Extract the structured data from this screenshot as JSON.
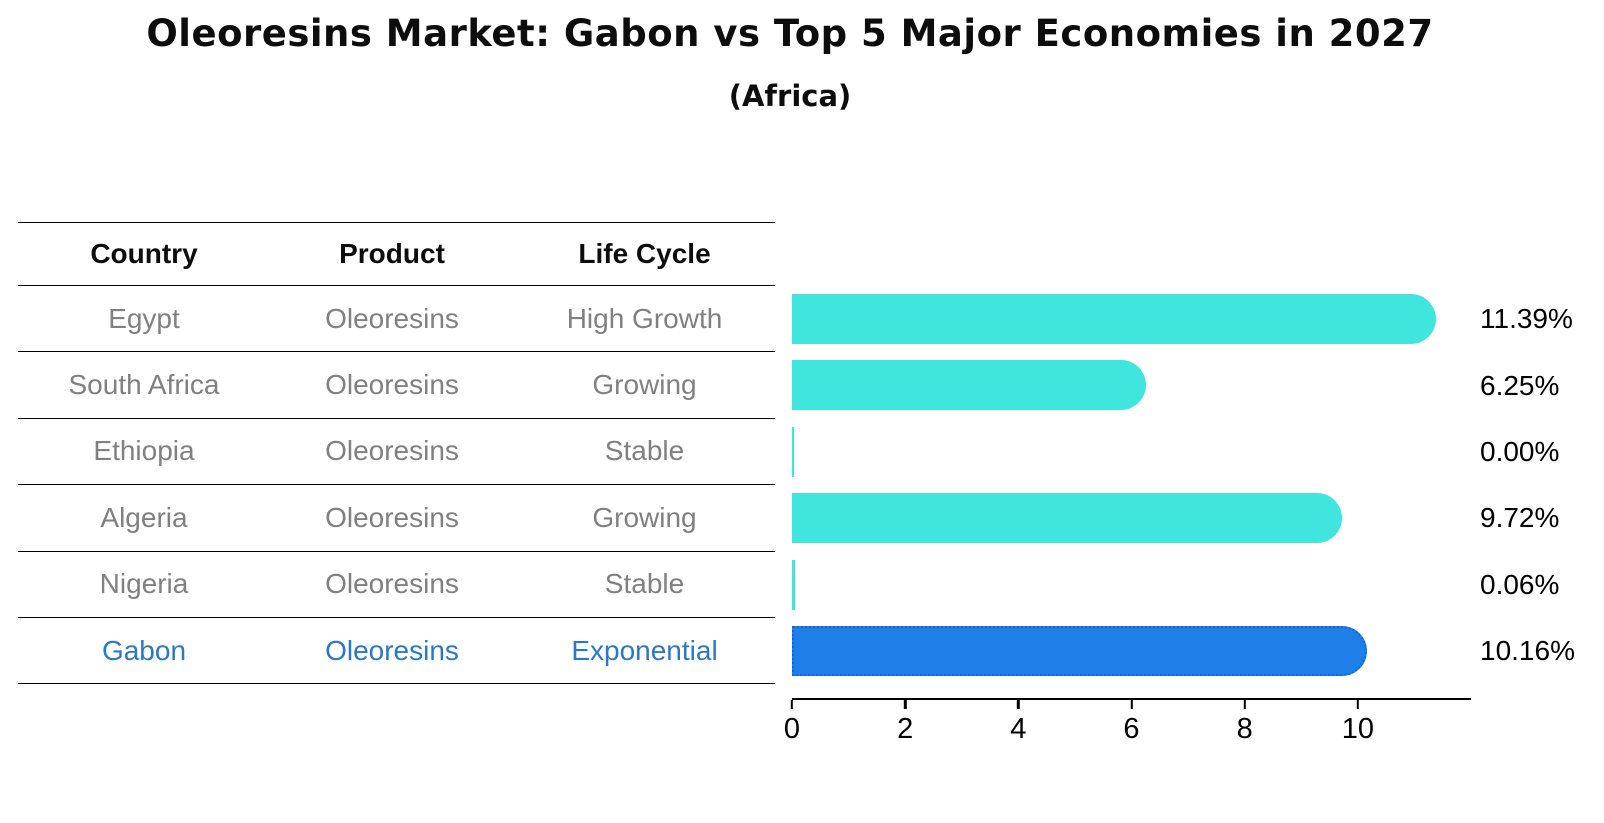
{
  "title": "Oleoresins Market: Gabon vs Top 5 Major Economies in 2027",
  "subtitle": "(Africa)",
  "table": {
    "headers": [
      "Country",
      "Product",
      "Life Cycle"
    ],
    "rows": [
      {
        "country": "Egypt",
        "product": "Oleoresins",
        "life_cycle": "High Growth",
        "highlight": false
      },
      {
        "country": "South Africa",
        "product": "Oleoresins",
        "life_cycle": "Growing",
        "highlight": false
      },
      {
        "country": "Ethiopia",
        "product": "Oleoresins",
        "life_cycle": "Stable",
        "highlight": false
      },
      {
        "country": "Algeria",
        "product": "Oleoresins",
        "life_cycle": "Growing",
        "highlight": false
      },
      {
        "country": "Nigeria",
        "product": "Oleoresins",
        "life_cycle": "Stable",
        "highlight": false
      },
      {
        "country": "Gabon",
        "product": "Oleoresins",
        "life_cycle": "Exponential",
        "highlight": true
      }
    ]
  },
  "chart_data": {
    "type": "bar",
    "orientation": "horizontal",
    "title": "Oleoresins Market: Gabon vs Top 5 Major Economies in 2027 (Africa)",
    "categories": [
      "Egypt",
      "South Africa",
      "Ethiopia",
      "Algeria",
      "Nigeria",
      "Gabon"
    ],
    "values": [
      11.39,
      6.25,
      0.0,
      9.72,
      0.06,
      10.16
    ],
    "value_labels": [
      "11.39%",
      "6.25%",
      "0.00%",
      "9.72%",
      "0.06%",
      "10.16%"
    ],
    "xlim": [
      0,
      12
    ],
    "xticks": [
      0,
      2,
      4,
      6,
      8,
      10
    ],
    "xtick_labels": [
      "0",
      "2",
      "4",
      "6",
      "8",
      "10"
    ],
    "grid": false,
    "legend": false,
    "bar_color": "#40e5de",
    "highlight_color": "#1e7fe8",
    "highlight_edge_color": "#1467d8",
    "highlight_text_color": "#2878cb",
    "highlight_index": 5
  }
}
